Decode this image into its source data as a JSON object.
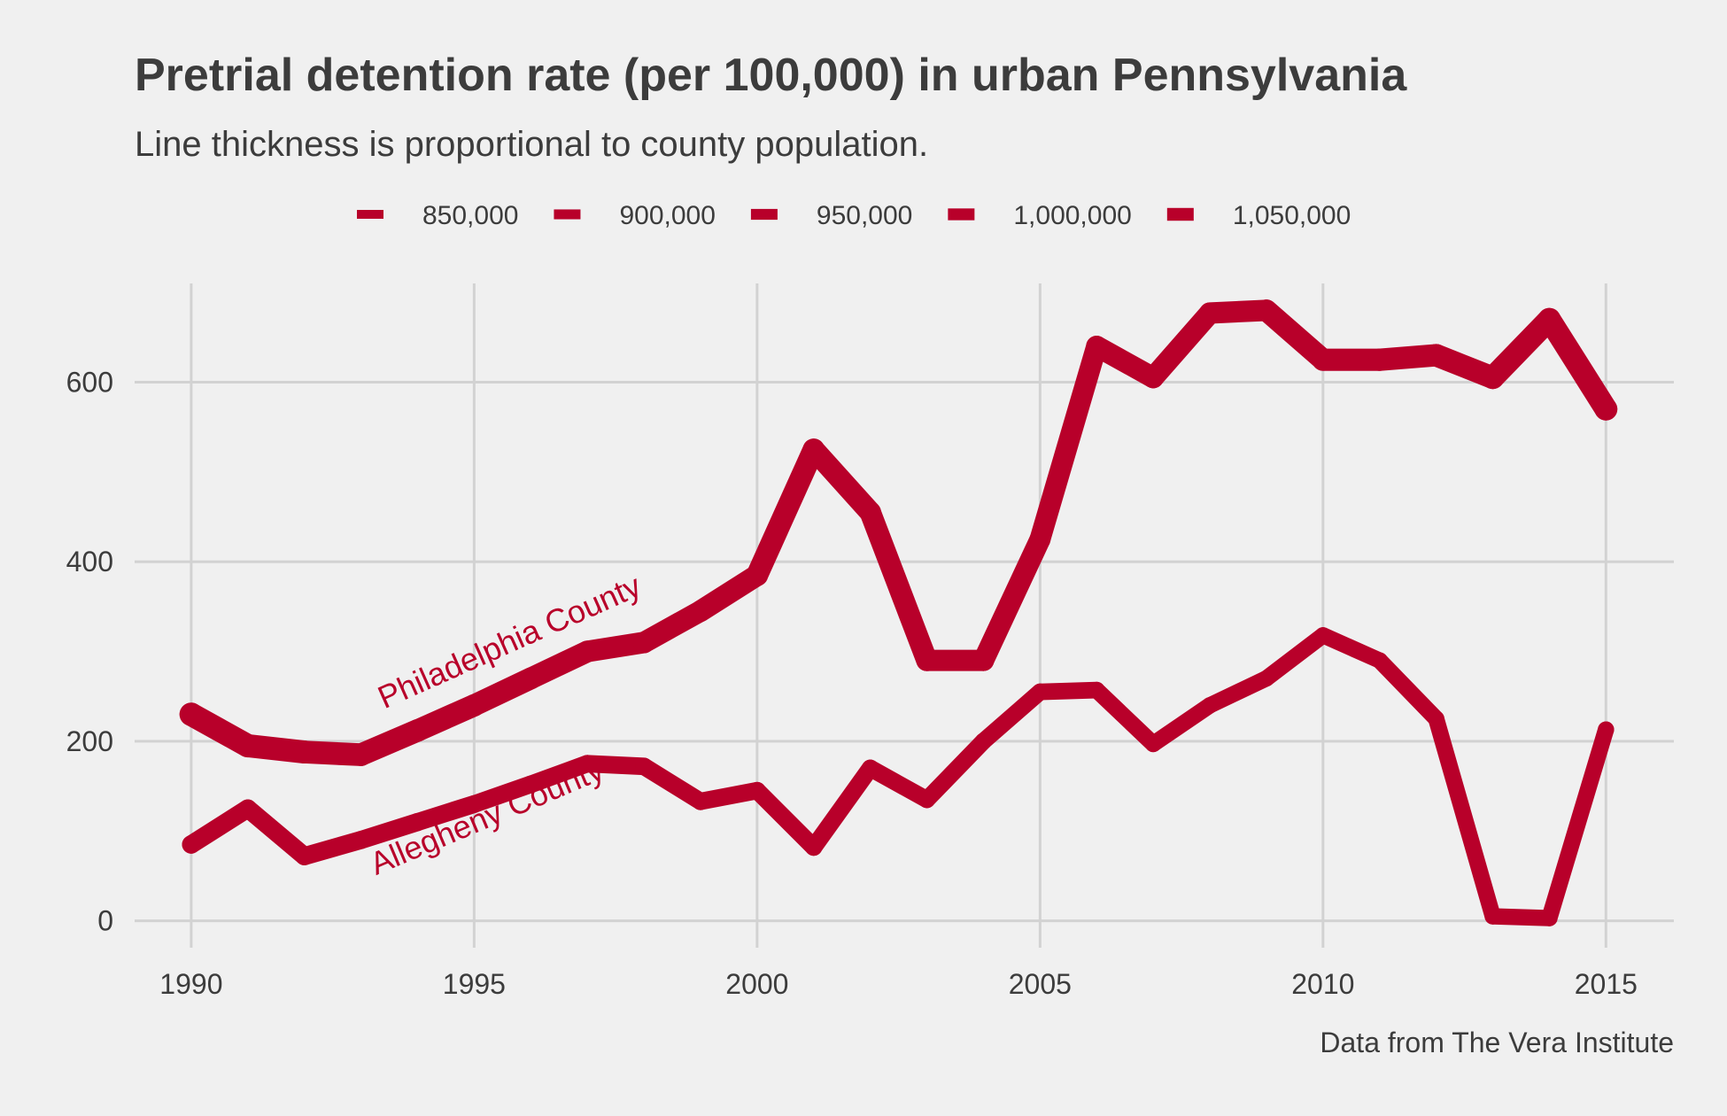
{
  "colors": {
    "line": "#b8002a",
    "grid": "#d2d2d2",
    "text": "#3c3c3c",
    "background": "#f0f0f0"
  },
  "chart_data": {
    "type": "line",
    "title": "Pretrial detention rate (per 100,000) in urban Pennsylvania",
    "subtitle": "Line thickness is proportional to county population.",
    "caption": "Data from The Vera Institute",
    "xlabel": "",
    "ylabel": "",
    "xlim": [
      1989,
      2016.2
    ],
    "ylim": [
      -30,
      710
    ],
    "xticks": [
      1990,
      1995,
      2000,
      2005,
      2010,
      2015
    ],
    "yticks": [
      0,
      200,
      400,
      600
    ],
    "grid": true,
    "legend_placement": "top",
    "legend": {
      "entries": [
        {
          "label": "850,000",
          "population": 850000
        },
        {
          "label": "900,000",
          "population": 900000
        },
        {
          "label": "950,000",
          "population": 950000
        },
        {
          "label": "1,000,000",
          "population": 1000000
        },
        {
          "label": "1,050,000",
          "population": 1050000
        }
      ]
    },
    "annotations": [
      {
        "text": "Philadelphia County",
        "series": "Philadelphia County",
        "x": 1995.7,
        "y": 300,
        "rotation": -24
      },
      {
        "text": "Allegheny County",
        "series": "Allegheny County",
        "x": 1995.3,
        "y": 105,
        "rotation": -23
      }
    ],
    "series": [
      {
        "name": "Philadelphia County",
        "x": [
          1990,
          1991,
          1992,
          1993,
          1994,
          1995,
          1996,
          1997,
          1998,
          1999,
          2000,
          2001,
          2002,
          2003,
          2004,
          2005,
          2006,
          2007,
          2008,
          2009,
          2010,
          2011,
          2012,
          2013,
          2014,
          2015
        ],
        "y": [
          230,
          195,
          188,
          185,
          212,
          240,
          270,
          300,
          310,
          345,
          385,
          525,
          455,
          290,
          290,
          425,
          640,
          605,
          677,
          680,
          625,
          625,
          630,
          605,
          670,
          570
        ],
        "population": [
          1590000,
          1580000,
          1565000,
          1550000,
          1540000,
          1525000,
          1510000,
          1495000,
          1490000,
          1480000,
          1515000,
          1505000,
          1495000,
          1485000,
          1475000,
          1465000,
          1470000,
          1475000,
          1480000,
          1490000,
          1526000,
          1530000,
          1540000,
          1550000,
          1555000,
          1560000
        ]
      },
      {
        "name": "Allegheny County",
        "x": [
          1990,
          1991,
          1992,
          1993,
          1994,
          1995,
          1996,
          1997,
          1998,
          1999,
          2000,
          2001,
          2002,
          2003,
          2004,
          2005,
          2006,
          2007,
          2008,
          2009,
          2010,
          2011,
          2012,
          2013,
          2014,
          2015
        ],
        "y": [
          85,
          125,
          72,
          90,
          110,
          130,
          152,
          175,
          172,
          133,
          145,
          82,
          170,
          135,
          200,
          255,
          257,
          197,
          240,
          270,
          318,
          290,
          225,
          5,
          3,
          213
        ],
        "population": [
          1335000,
          1330000,
          1325000,
          1320000,
          1315000,
          1300000,
          1295000,
          1290000,
          1285000,
          1280000,
          1281000,
          1275000,
          1270000,
          1262000,
          1255000,
          1245000,
          1237000,
          1230000,
          1225000,
          1222000,
          1223000,
          1225000,
          1228000,
          1230000,
          1231000,
          1230000
        ]
      }
    ]
  }
}
